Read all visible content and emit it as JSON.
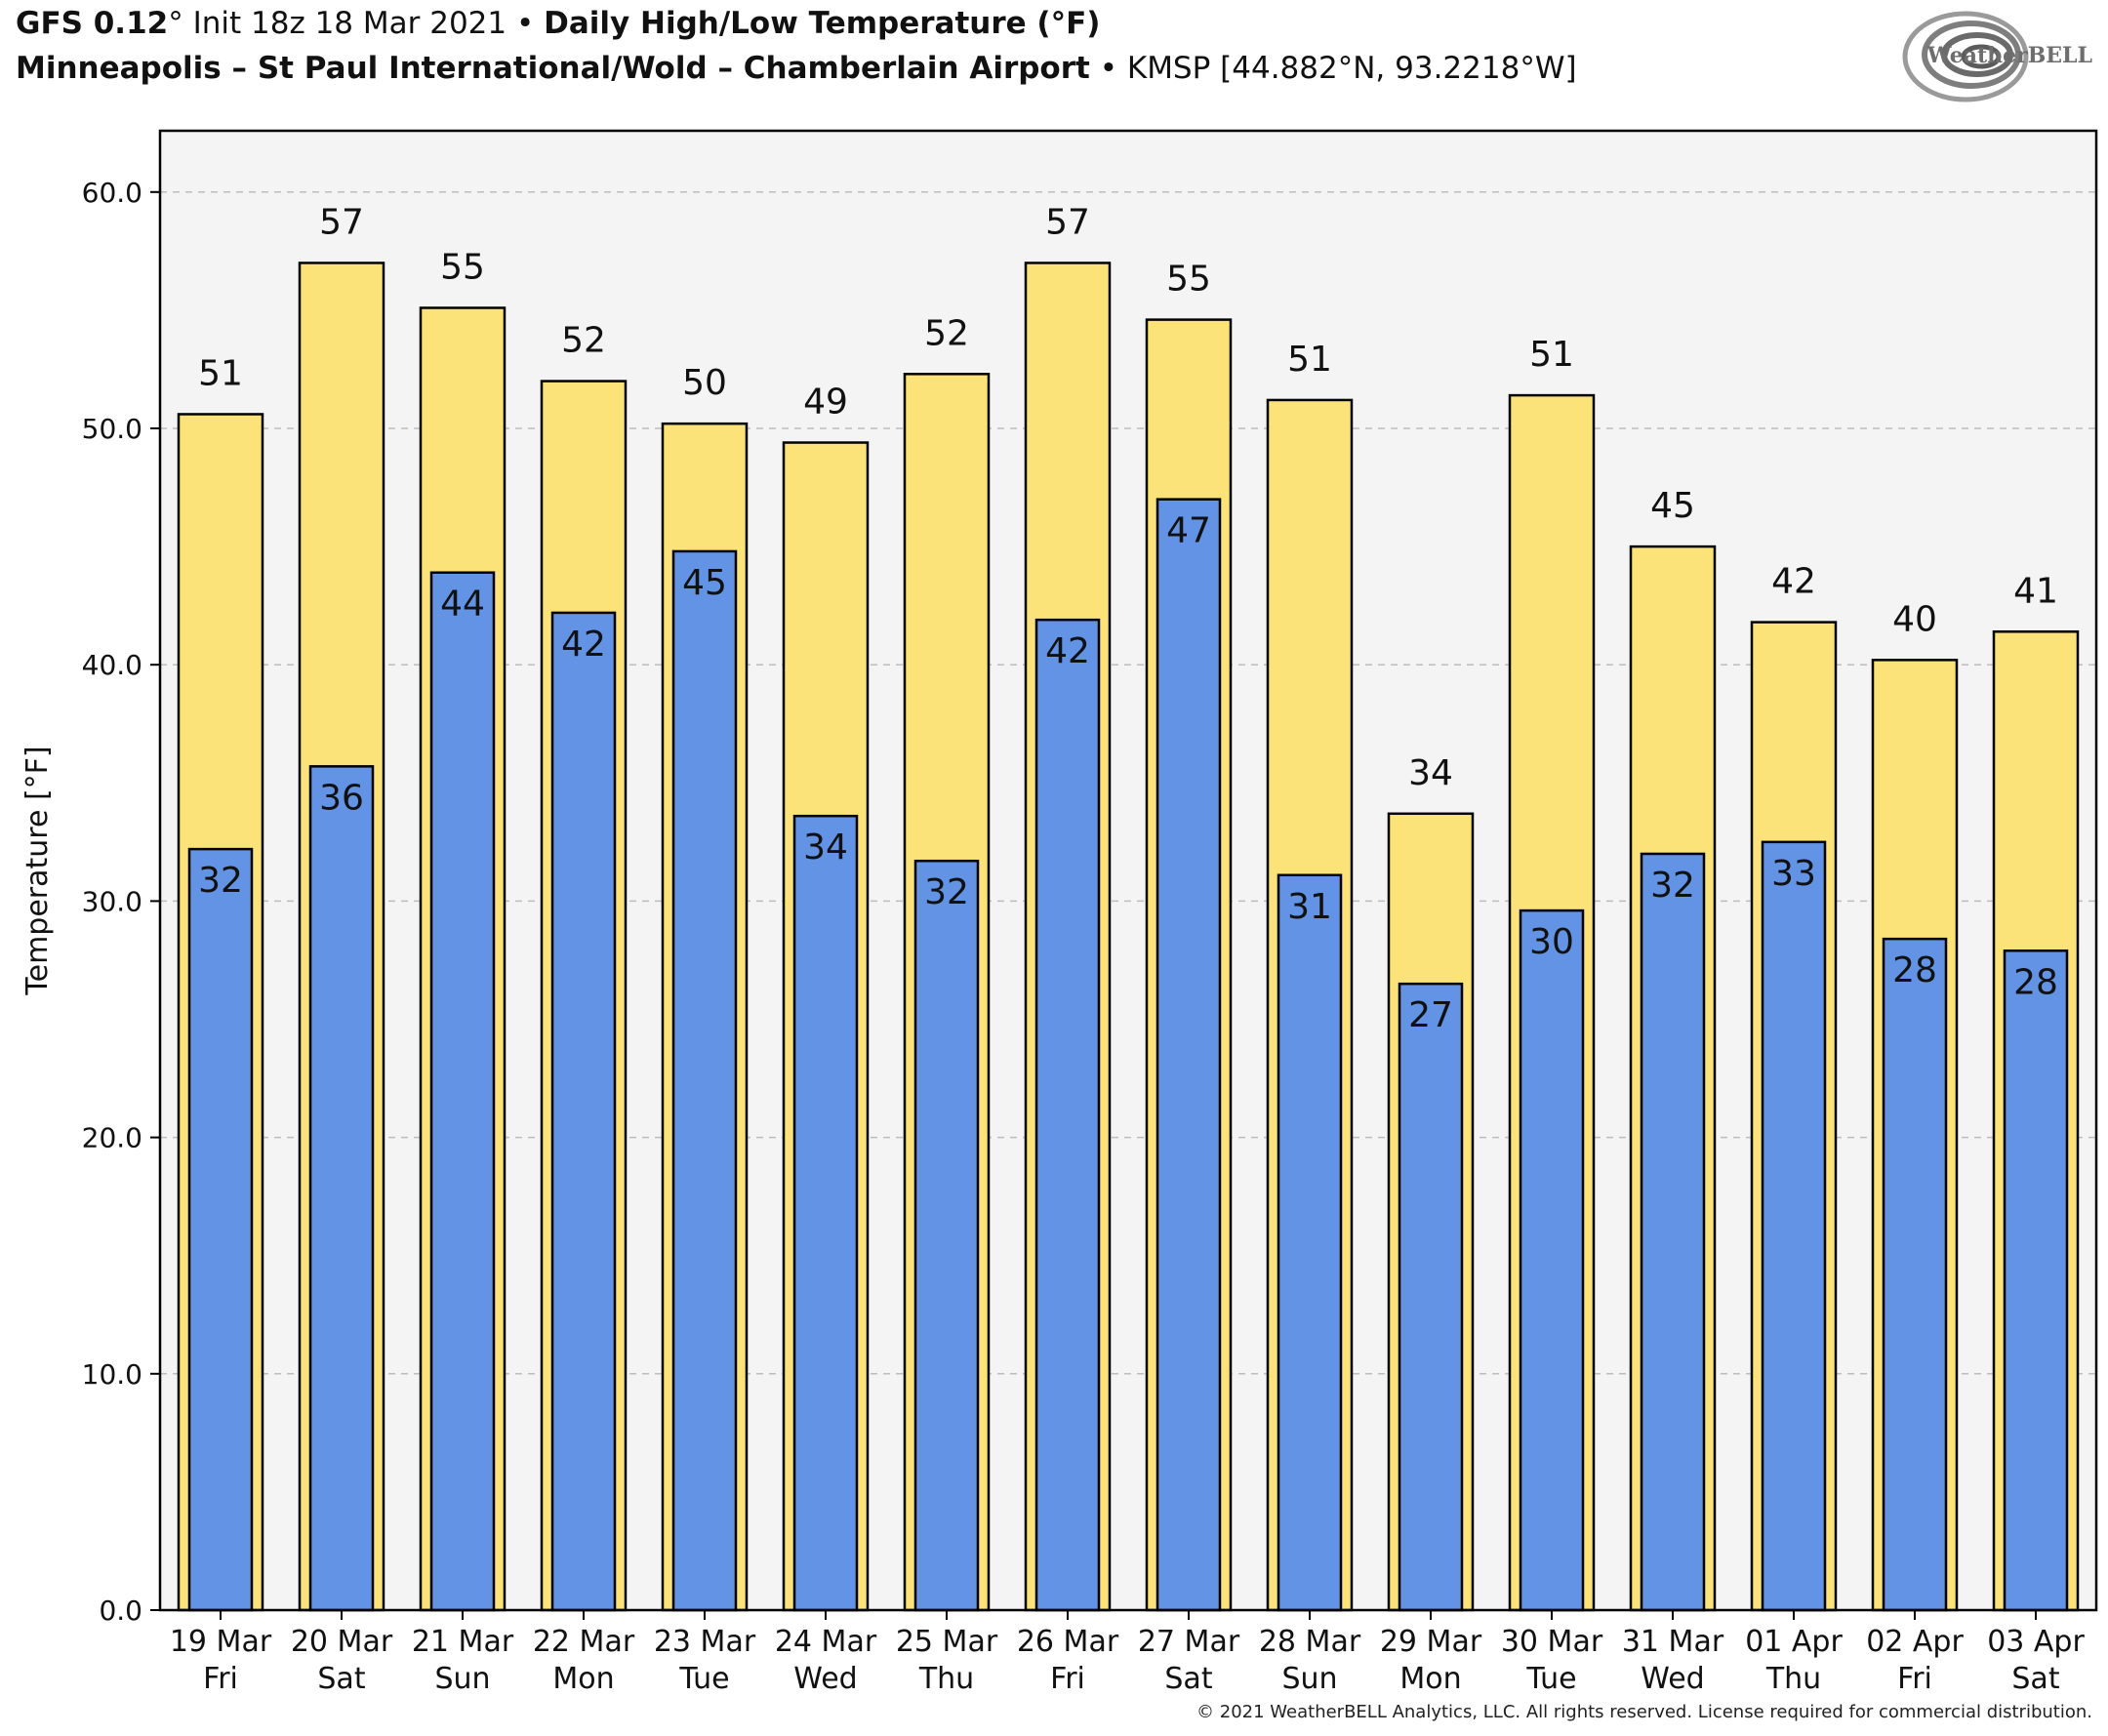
{
  "header": {
    "model": "GFS 0.12",
    "deg": "°",
    "init": " Init 18z 18 Mar 2021 ",
    "bullet": "•",
    "product": "Daily High/Low Temperature (°F)",
    "station": "Minneapolis – St Paul International/Wold – Chamberlain Airport",
    "station_code": "KMSP [44.882°N, 93.2218°W]"
  },
  "logo": {
    "text": "WeatherBELL",
    "icon": "weatherbell-swirl-logo"
  },
  "copyright": "© 2021 WeatherBELL Analytics, LLC. All rights reserved. License required for commercial distribution.",
  "colors": {
    "high": "#fbe37a",
    "low": "#6293e5",
    "plot_bg": "#f4f4f4",
    "grid": "#bdbdbd"
  },
  "chart_data": {
    "type": "bar",
    "ylabel": "Temperature [°F]",
    "ylim": [
      0,
      63
    ],
    "yticks": [
      "0.0",
      "10.0",
      "20.0",
      "30.0",
      "40.0",
      "50.0",
      "60.0"
    ],
    "grid": "horizontal dashed",
    "categories": [
      [
        "19 Mar",
        "Fri"
      ],
      [
        "20 Mar",
        "Sat"
      ],
      [
        "21 Mar",
        "Sun"
      ],
      [
        "22 Mar",
        "Mon"
      ],
      [
        "23 Mar",
        "Tue"
      ],
      [
        "24 Mar",
        "Wed"
      ],
      [
        "25 Mar",
        "Thu"
      ],
      [
        "26 Mar",
        "Fri"
      ],
      [
        "27 Mar",
        "Sat"
      ],
      [
        "28 Mar",
        "Sun"
      ],
      [
        "29 Mar",
        "Mon"
      ],
      [
        "30 Mar",
        "Tue"
      ],
      [
        "31 Mar",
        "Wed"
      ],
      [
        "01 Apr",
        "Thu"
      ],
      [
        "02 Apr",
        "Fri"
      ],
      [
        "03 Apr",
        "Sat"
      ]
    ],
    "series": [
      {
        "key": "high",
        "values": [
          50.6,
          57,
          55.1,
          52,
          50.2,
          49.4,
          52.3,
          57,
          54.6,
          51.2,
          33.7,
          51.4,
          45,
          41.8,
          40.2,
          41.4
        ],
        "labels": [
          "51",
          "57",
          "55",
          "52",
          "50",
          "49",
          "52",
          "57",
          "55",
          "51",
          "34",
          "51",
          "45",
          "42",
          "40",
          "41"
        ]
      },
      {
        "key": "low",
        "values": [
          32.2,
          35.7,
          43.9,
          42.2,
          44.8,
          33.6,
          31.7,
          41.9,
          47,
          31.1,
          26.5,
          29.6,
          32,
          32.5,
          28.4,
          27.9
        ],
        "labels": [
          "32",
          "36",
          "44",
          "42",
          "45",
          "34",
          "32",
          "42",
          "47",
          "31",
          "27",
          "30",
          "32",
          "33",
          "28",
          "28"
        ]
      }
    ]
  }
}
